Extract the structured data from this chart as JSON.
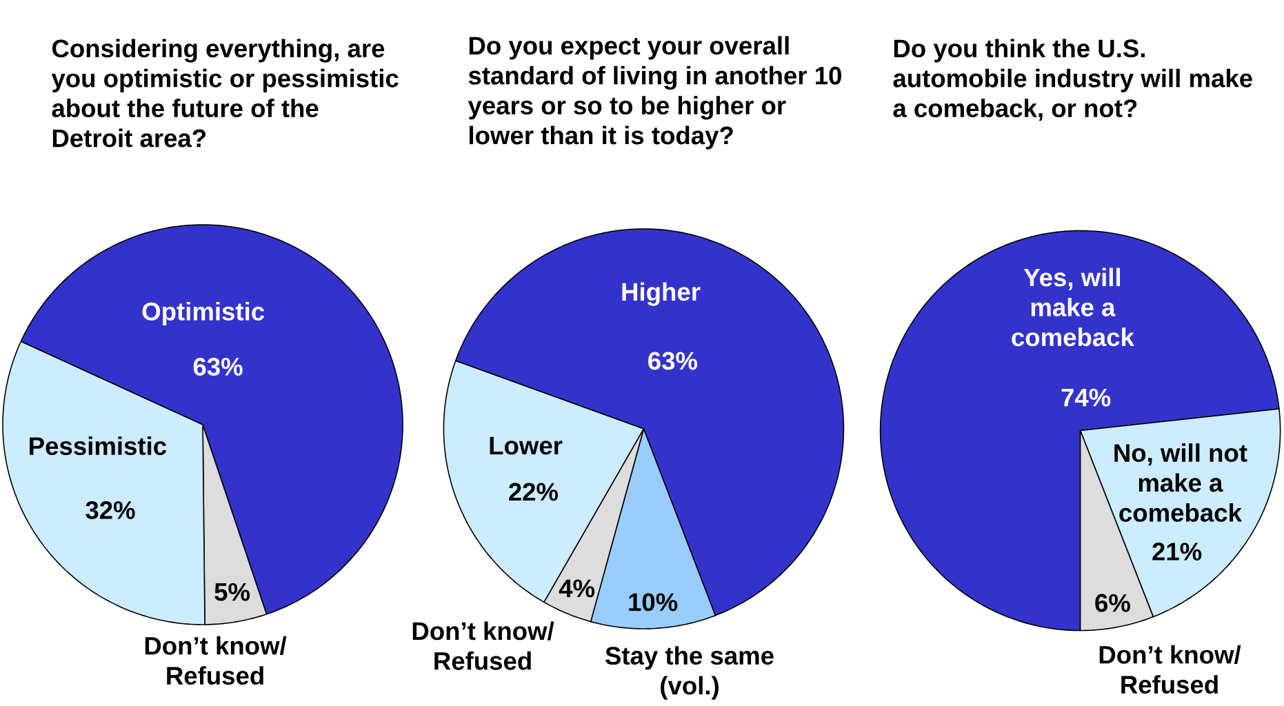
{
  "chart_data": [
    {
      "type": "pie",
      "title": "Considering everything, are you optimistic or pessimistic about the future of the Detroit area?",
      "categories": [
        "Optimistic",
        "Don’t know/ Refused",
        "Pessimistic"
      ],
      "values": [
        63,
        5,
        32
      ],
      "colors": [
        "#3333cc",
        "#dddddd",
        "#ccecff"
      ],
      "value_labels": [
        "63%",
        "5%",
        "32%"
      ]
    },
    {
      "type": "pie",
      "title": "Do you expect your overall standard of living in another 10 years or so to be higher or lower than it is today?",
      "categories": [
        "Higher",
        "Stay the same (vol.)",
        "Don’t know/ Refused",
        "Lower"
      ],
      "values": [
        63,
        10,
        4,
        22
      ],
      "colors": [
        "#3333cc",
        "#99ccff",
        "#dddddd",
        "#ccecff"
      ],
      "value_labels": [
        "63%",
        "10%",
        "4%",
        "22%"
      ]
    },
    {
      "type": "pie",
      "title": "Do you think the U.S. automobile industry will make a comeback, or not?",
      "categories": [
        "Yes, will make a comeback",
        "No, will not make a comeback",
        "Don’t know/ Refused"
      ],
      "values": [
        74,
        21,
        6
      ],
      "colors": [
        "#3333cc",
        "#ccecff",
        "#dddddd"
      ],
      "value_labels": [
        "74%",
        "21%",
        "6%"
      ]
    }
  ]
}
